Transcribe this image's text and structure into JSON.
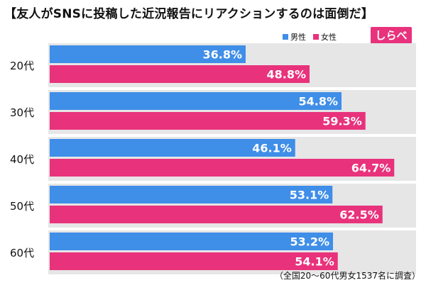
{
  "title": "【友人がSNSに投稿した近況報告にリアクションするのは面倒だ】",
  "legend": [
    {
      "label": "男性",
      "color": "#3f8ee8"
    },
    {
      "label": "女性",
      "color": "#e8327c"
    }
  ],
  "logo_text": "しらべぇ",
  "footnote": "（全国20〜60代男女1537名に調査）",
  "chart_data": {
    "type": "bar",
    "orientation": "horizontal",
    "categories": [
      "20代",
      "30代",
      "40代",
      "50代",
      "60代"
    ],
    "series": [
      {
        "name": "男性",
        "values": [
          36.8,
          54.8,
          46.1,
          53.1,
          53.2
        ],
        "color": "#3f8ee8"
      },
      {
        "name": "女性",
        "values": [
          48.8,
          59.3,
          64.7,
          62.5,
          54.1
        ],
        "color": "#e8327c"
      }
    ],
    "value_suffix": "%",
    "band_color": "#e6e6e6",
    "xlim": [
      0,
      100
    ],
    "grid": false
  }
}
